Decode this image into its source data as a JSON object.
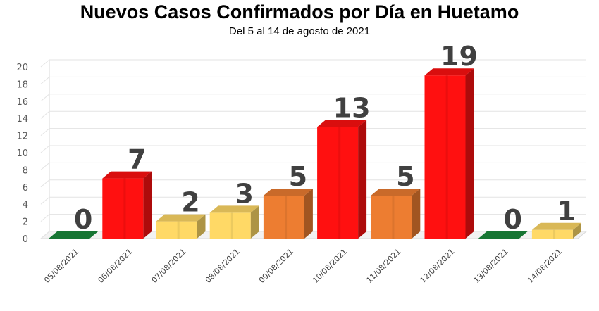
{
  "chart_data": {
    "type": "bar",
    "title": "Nuevos Casos Confirmados por Día en Huetamo",
    "subtitle": "Del 5 al 14 de agosto de 2021",
    "categories": [
      "05/08/2021",
      "06/08/2021",
      "07/08/2021",
      "08/08/2021",
      "09/08/2021",
      "10/08/2021",
      "11/08/2021",
      "12/08/2021",
      "13/08/2021",
      "14/08/2021"
    ],
    "values": [
      0,
      7,
      2,
      3,
      5,
      13,
      5,
      19,
      0,
      1
    ],
    "ylim": [
      0,
      20
    ],
    "yticks": [
      0,
      2,
      4,
      6,
      8,
      10,
      12,
      14,
      16,
      18,
      20
    ],
    "grid": true,
    "legend": "none",
    "bar_colors": [
      "#1a8a3c",
      "#ff1010",
      "#ffd966",
      "#ffd966",
      "#ed7d31",
      "#ff1010",
      "#ed7d31",
      "#ff1010",
      "#1a8a3c",
      "#ffd966"
    ]
  }
}
